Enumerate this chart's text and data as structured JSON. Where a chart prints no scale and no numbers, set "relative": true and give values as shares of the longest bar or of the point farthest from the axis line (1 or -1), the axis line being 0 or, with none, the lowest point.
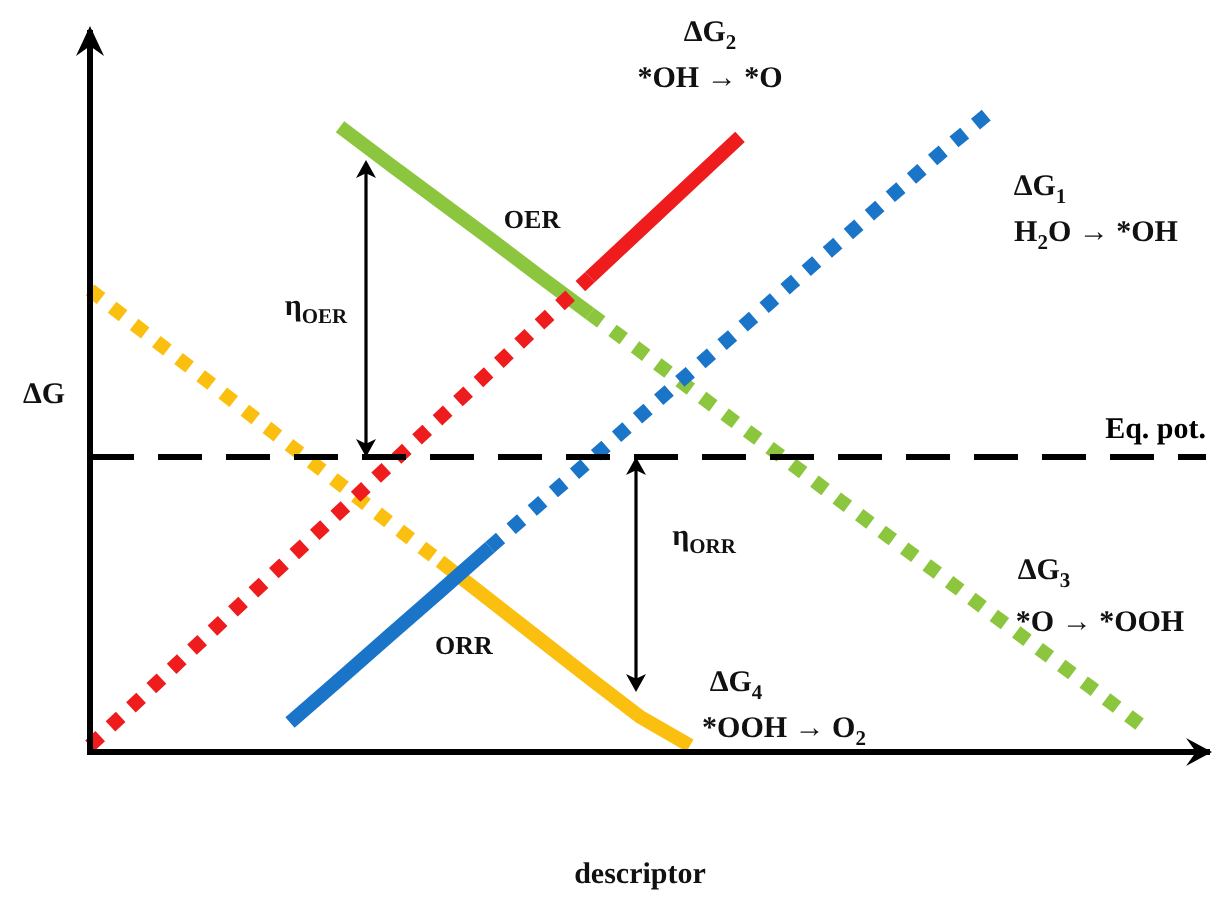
{
  "chart_data": {
    "type": "line",
    "relative": true,
    "xlabel": "descriptor",
    "ylabel": "ΔG",
    "grid": false,
    "legend": false,
    "marker": "none",
    "categories": [
      null,
      null,
      null,
      null,
      null,
      null,
      null,
      null,
      null,
      null,
      null,
      null,
      null,
      null,
      null,
      null,
      null,
      null,
      null,
      null,
      null,
      null,
      null
    ],
    "series": [
      {
        "color": "#ee1c1c",
        "line_style": "dotted",
        "values": [
          0.01,
          0.083,
          0.157,
          0.23,
          0.303,
          0.376,
          0.449,
          0.522,
          0.595,
          0.669,
          0.742,
          null,
          null,
          null,
          null,
          null,
          null,
          null,
          null,
          null,
          null,
          null,
          null
        ]
      },
      {
        "color": "#ee1c1c",
        "line_style": "solid",
        "values": [
          null,
          null,
          null,
          null,
          null,
          null,
          null,
          null,
          null,
          null,
          0.742,
          0.815,
          0.888,
          0.961,
          null,
          null,
          null,
          null,
          null,
          null,
          null,
          null,
          null
        ]
      },
      {
        "color": "#1a75c9",
        "line_style": "solid",
        "values": [
          null,
          null,
          null,
          null,
          0.046,
          0.114,
          0.183,
          0.251,
          0.32,
          null,
          null,
          null,
          null,
          null,
          null,
          null,
          null,
          null,
          null,
          null,
          null,
          null,
          null
        ]
      },
      {
        "color": "#1a75c9",
        "line_style": "dotted",
        "values": [
          null,
          null,
          null,
          null,
          null,
          null,
          null,
          null,
          0.32,
          0.388,
          0.456,
          0.525,
          0.593,
          0.661,
          0.73,
          0.798,
          0.867,
          0.935,
          1.0,
          null,
          null,
          null,
          null
        ]
      },
      {
        "color": "#8cc63e",
        "line_style": "solid",
        "values": [
          null,
          null,
          null,
          null,
          null,
          0.977,
          0.918,
          0.86,
          0.802,
          0.743,
          0.685,
          null,
          null,
          null,
          null,
          null,
          null,
          null,
          null,
          null,
          null,
          null,
          null
        ]
      },
      {
        "color": "#8cc63e",
        "line_style": "dotted",
        "values": [
          null,
          null,
          null,
          null,
          null,
          null,
          null,
          null,
          null,
          null,
          0.685,
          0.627,
          0.568,
          0.51,
          0.452,
          0.393,
          0.335,
          0.277,
          0.218,
          0.16,
          0.102,
          0.043,
          null
        ]
      },
      {
        "color": "#fbbf0f",
        "line_style": "dotted",
        "values": [
          0.722,
          0.661,
          0.601,
          0.54,
          0.479,
          0.419,
          0.358,
          0.298,
          null,
          null,
          null,
          null,
          null,
          null,
          null,
          null,
          null,
          null,
          null,
          null,
          null,
          null,
          null
        ]
      },
      {
        "color": "#fbbf0f",
        "line_style": "solid",
        "values": [
          null,
          null,
          null,
          null,
          null,
          null,
          null,
          0.298,
          0.237,
          0.176,
          0.115,
          0.055,
          0.01,
          null,
          null,
          null,
          null,
          null,
          null,
          null,
          null,
          null,
          null
        ]
      }
    ],
    "ref_lines": [
      {
        "axis": "y",
        "value": 0.461,
        "label": "Eq. pot.",
        "color": "#000000",
        "line_style": "dashed"
      }
    ],
    "annotations": [
      "ΔG$_{2}$",
      "*OH → *O",
      "ΔG$_{1}$",
      "H$_{2}$O → *OH",
      "ΔG$_{3}$",
      "*O → *OOH",
      "ΔG$_{4}$",
      "*OOH → O$_{2}$",
      "OER",
      "ORR",
      "η$_{OER}$",
      "η$_{ORR}$"
    ]
  }
}
